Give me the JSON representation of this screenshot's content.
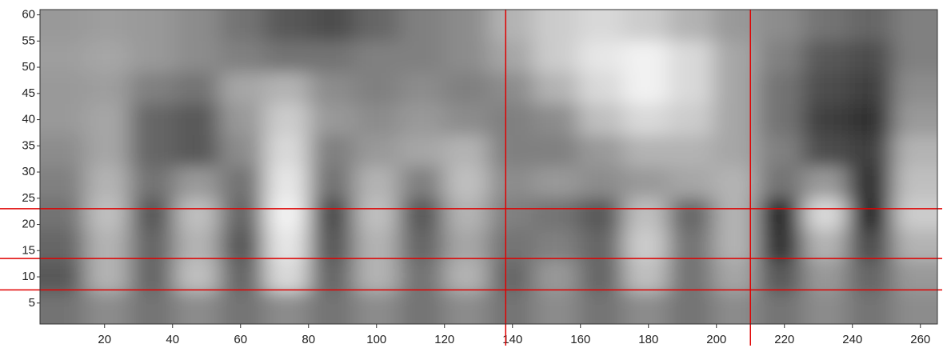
{
  "chart_data": {
    "type": "heatmap",
    "xlim": [
      1,
      265
    ],
    "ylim": [
      1,
      61
    ],
    "xticks": [
      20,
      40,
      60,
      80,
      100,
      120,
      140,
      160,
      180,
      200,
      220,
      240,
      260
    ],
    "yticks": [
      5,
      10,
      15,
      20,
      25,
      30,
      35,
      40,
      45,
      50,
      55,
      60
    ],
    "z": [
      [
        0.6,
        0.62,
        0.6,
        0.55,
        0.45,
        0.35,
        0.3,
        0.4,
        0.5,
        0.55,
        0.7,
        0.8,
        0.85,
        0.8,
        0.7,
        0.6,
        0.55,
        0.45,
        0.4,
        0.5
      ],
      [
        0.62,
        0.65,
        0.6,
        0.55,
        0.5,
        0.45,
        0.45,
        0.5,
        0.5,
        0.55,
        0.65,
        0.8,
        0.9,
        0.95,
        0.85,
        0.65,
        0.5,
        0.35,
        0.3,
        0.5
      ],
      [
        0.6,
        0.62,
        0.5,
        0.45,
        0.65,
        0.7,
        0.55,
        0.5,
        0.55,
        0.5,
        0.55,
        0.7,
        0.85,
        0.95,
        0.85,
        0.65,
        0.45,
        0.3,
        0.25,
        0.55
      ],
      [
        0.6,
        0.65,
        0.4,
        0.35,
        0.6,
        0.8,
        0.6,
        0.55,
        0.6,
        0.55,
        0.5,
        0.55,
        0.75,
        0.85,
        0.8,
        0.65,
        0.45,
        0.25,
        0.2,
        0.6
      ],
      [
        0.55,
        0.65,
        0.4,
        0.35,
        0.55,
        0.85,
        0.5,
        0.6,
        0.65,
        0.7,
        0.5,
        0.5,
        0.6,
        0.7,
        0.7,
        0.65,
        0.5,
        0.3,
        0.25,
        0.7
      ],
      [
        0.5,
        0.7,
        0.45,
        0.6,
        0.45,
        0.9,
        0.45,
        0.7,
        0.5,
        0.75,
        0.55,
        0.6,
        0.55,
        0.6,
        0.65,
        0.7,
        0.45,
        0.6,
        0.2,
        0.75
      ],
      [
        0.45,
        0.75,
        0.35,
        0.75,
        0.4,
        0.95,
        0.3,
        0.75,
        0.35,
        0.7,
        0.5,
        0.45,
        0.35,
        0.75,
        0.4,
        0.7,
        0.15,
        0.85,
        0.15,
        0.8
      ],
      [
        0.4,
        0.7,
        0.4,
        0.7,
        0.35,
        0.9,
        0.35,
        0.7,
        0.4,
        0.65,
        0.45,
        0.5,
        0.4,
        0.8,
        0.45,
        0.7,
        0.2,
        0.7,
        0.3,
        0.7
      ],
      [
        0.35,
        0.7,
        0.4,
        0.75,
        0.4,
        0.85,
        0.4,
        0.7,
        0.45,
        0.7,
        0.4,
        0.6,
        0.4,
        0.75,
        0.45,
        0.65,
        0.35,
        0.6,
        0.4,
        0.6
      ],
      [
        0.45,
        0.55,
        0.45,
        0.55,
        0.45,
        0.55,
        0.45,
        0.55,
        0.45,
        0.55,
        0.45,
        0.55,
        0.45,
        0.55,
        0.45,
        0.55,
        0.45,
        0.55,
        0.45,
        0.55
      ]
    ],
    "vlines": [
      138,
      210
    ],
    "hlines": [
      23,
      13.5,
      7.5
    ],
    "line_color": "#e00000"
  }
}
